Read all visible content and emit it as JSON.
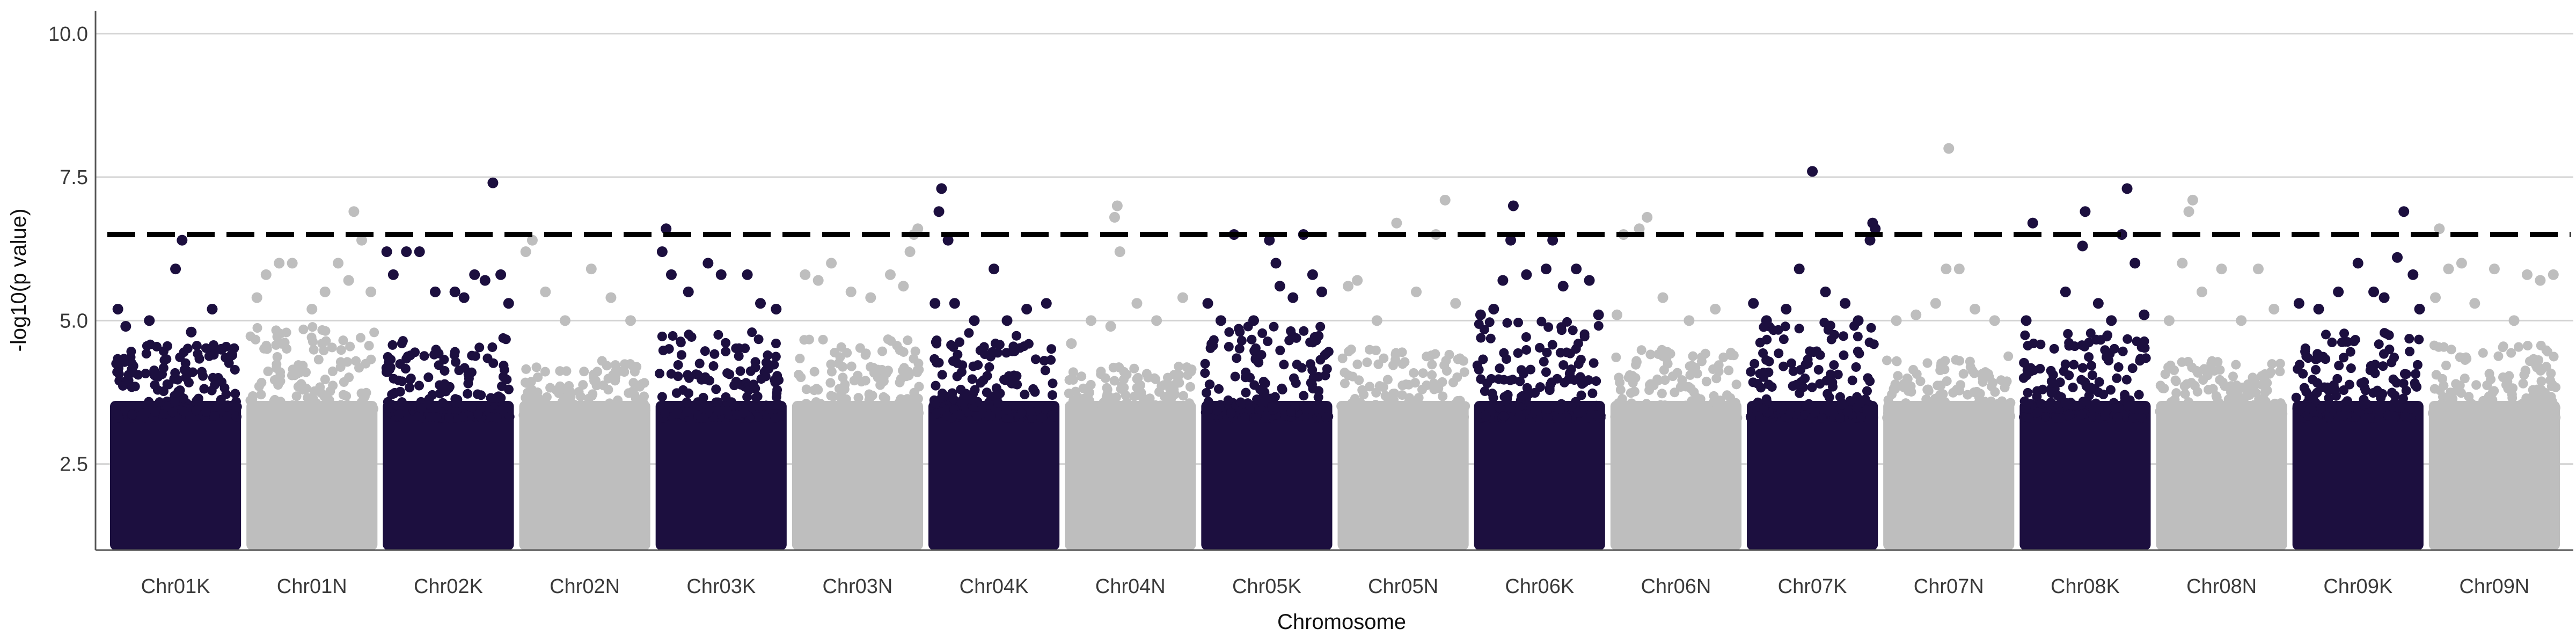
{
  "chart_data": {
    "type": "scatter",
    "subtype": "manhattan",
    "title": "",
    "xlabel": "Chromosome",
    "ylabel": "-log10(p value)",
    "ylim": [
      1.0,
      10.4
    ],
    "y_ticks": [
      2.5,
      5.0,
      7.5,
      10.0
    ],
    "y_tick_labels": [
      "2.5",
      "5.0",
      "7.5",
      "10.0"
    ],
    "grid": "horizontal-major",
    "legend": "none",
    "threshold": {
      "value": 6.5,
      "style": "dashed",
      "color": "#000000"
    },
    "colors": {
      "odd": "#1c0f3f",
      "even": "#bebebe",
      "background": "#ffffff",
      "grid": "#d4d4d4"
    },
    "categories": [
      "Chr01K",
      "Chr01N",
      "Chr02K",
      "Chr02N",
      "Chr03K",
      "Chr03N",
      "Chr04K",
      "Chr04N",
      "Chr05K",
      "Chr05N",
      "Chr06K",
      "Chr06N",
      "Chr07K",
      "Chr07N",
      "Chr08K",
      "Chr08N",
      "Chr09K",
      "Chr09N"
    ],
    "bulk_top": [
      4.6,
      4.9,
      4.7,
      4.3,
      4.8,
      4.7,
      4.8,
      4.2,
      4.9,
      4.5,
      5.0,
      4.5,
      5.0,
      4.4,
      4.8,
      4.3,
      4.8,
      4.6
    ],
    "series": [
      {
        "name": "",
        "category": "Chr01K",
        "points": [
          [
            0.06,
            5.2
          ],
          [
            0.12,
            4.9
          ],
          [
            0.3,
            5.0
          ],
          [
            0.5,
            5.9
          ],
          [
            0.55,
            6.4
          ],
          [
            0.62,
            4.8
          ],
          [
            0.78,
            5.2
          ],
          [
            0.85,
            4.5
          ],
          [
            0.93,
            4.4
          ]
        ]
      },
      {
        "name": "",
        "category": "Chr01N",
        "points": [
          [
            0.08,
            5.4
          ],
          [
            0.15,
            5.8
          ],
          [
            0.25,
            6.0
          ],
          [
            0.35,
            6.0
          ],
          [
            0.5,
            5.2
          ],
          [
            0.6,
            5.5
          ],
          [
            0.7,
            6.0
          ],
          [
            0.78,
            5.7
          ],
          [
            0.82,
            6.9
          ],
          [
            0.88,
            6.4
          ],
          [
            0.95,
            5.5
          ]
        ]
      },
      {
        "name": "",
        "category": "Chr02K",
        "points": [
          [
            0.03,
            6.2
          ],
          [
            0.08,
            5.8
          ],
          [
            0.18,
            6.2
          ],
          [
            0.28,
            6.2
          ],
          [
            0.4,
            5.5
          ],
          [
            0.55,
            5.5
          ],
          [
            0.62,
            5.4
          ],
          [
            0.7,
            5.8
          ],
          [
            0.78,
            5.7
          ],
          [
            0.84,
            7.4
          ],
          [
            0.9,
            5.8
          ],
          [
            0.96,
            5.3
          ]
        ]
      },
      {
        "name": "",
        "category": "Chr02N",
        "points": [
          [
            0.05,
            6.2
          ],
          [
            0.1,
            6.4
          ],
          [
            0.2,
            5.5
          ],
          [
            0.35,
            5.0
          ],
          [
            0.55,
            5.9
          ],
          [
            0.7,
            5.4
          ],
          [
            0.85,
            5.0
          ]
        ]
      },
      {
        "name": "",
        "category": "Chr03K",
        "points": [
          [
            0.05,
            6.2
          ],
          [
            0.08,
            6.6
          ],
          [
            0.12,
            5.8
          ],
          [
            0.25,
            5.5
          ],
          [
            0.4,
            6.0
          ],
          [
            0.5,
            5.8
          ],
          [
            0.7,
            5.8
          ],
          [
            0.8,
            5.3
          ],
          [
            0.92,
            5.2
          ]
        ]
      },
      {
        "name": "",
        "category": "Chr03N",
        "points": [
          [
            0.1,
            5.8
          ],
          [
            0.2,
            5.7
          ],
          [
            0.3,
            6.0
          ],
          [
            0.45,
            5.5
          ],
          [
            0.6,
            5.4
          ],
          [
            0.75,
            5.8
          ],
          [
            0.85,
            5.6
          ],
          [
            0.9,
            6.2
          ],
          [
            0.93,
            6.5
          ],
          [
            0.96,
            6.6
          ]
        ]
      },
      {
        "name": "",
        "category": "Chr04K",
        "points": [
          [
            0.05,
            5.3
          ],
          [
            0.08,
            6.9
          ],
          [
            0.1,
            7.3
          ],
          [
            0.15,
            6.4
          ],
          [
            0.2,
            5.3
          ],
          [
            0.35,
            5.0
          ],
          [
            0.5,
            5.9
          ],
          [
            0.6,
            5.0
          ],
          [
            0.75,
            5.2
          ],
          [
            0.9,
            5.3
          ]
        ]
      },
      {
        "name": "",
        "category": "Chr04N",
        "points": [
          [
            0.05,
            4.6
          ],
          [
            0.2,
            5.0
          ],
          [
            0.35,
            4.9
          ],
          [
            0.38,
            6.8
          ],
          [
            0.4,
            7.0
          ],
          [
            0.42,
            6.2
          ],
          [
            0.55,
            5.3
          ],
          [
            0.7,
            5.0
          ],
          [
            0.9,
            5.4
          ]
        ]
      },
      {
        "name": "",
        "category": "Chr05K",
        "points": [
          [
            0.05,
            5.3
          ],
          [
            0.15,
            5.0
          ],
          [
            0.25,
            6.5
          ],
          [
            0.4,
            5.0
          ],
          [
            0.52,
            6.4
          ],
          [
            0.57,
            6.0
          ],
          [
            0.6,
            5.6
          ],
          [
            0.7,
            5.4
          ],
          [
            0.78,
            6.5
          ],
          [
            0.85,
            5.8
          ],
          [
            0.92,
            5.5
          ]
        ]
      },
      {
        "name": "",
        "category": "Chr05N",
        "points": [
          [
            0.08,
            5.6
          ],
          [
            0.15,
            5.7
          ],
          [
            0.3,
            5.0
          ],
          [
            0.45,
            6.7
          ],
          [
            0.6,
            5.5
          ],
          [
            0.75,
            6.5
          ],
          [
            0.82,
            7.1
          ],
          [
            0.9,
            5.3
          ]
        ]
      },
      {
        "name": "",
        "category": "Chr06K",
        "points": [
          [
            0.05,
            5.1
          ],
          [
            0.15,
            5.2
          ],
          [
            0.22,
            5.7
          ],
          [
            0.28,
            6.4
          ],
          [
            0.3,
            7.0
          ],
          [
            0.4,
            5.8
          ],
          [
            0.55,
            5.9
          ],
          [
            0.6,
            6.4
          ],
          [
            0.68,
            5.6
          ],
          [
            0.78,
            5.9
          ],
          [
            0.88,
            5.7
          ],
          [
            0.95,
            5.1
          ]
        ]
      },
      {
        "name": "",
        "category": "Chr06N",
        "points": [
          [
            0.05,
            5.1
          ],
          [
            0.1,
            6.5
          ],
          [
            0.22,
            6.6
          ],
          [
            0.28,
            6.8
          ],
          [
            0.4,
            5.4
          ],
          [
            0.6,
            5.0
          ],
          [
            0.8,
            5.2
          ]
        ]
      },
      {
        "name": "",
        "category": "Chr07K",
        "points": [
          [
            0.05,
            5.3
          ],
          [
            0.15,
            5.0
          ],
          [
            0.3,
            5.2
          ],
          [
            0.4,
            5.9
          ],
          [
            0.5,
            7.6
          ],
          [
            0.6,
            5.5
          ],
          [
            0.75,
            5.3
          ],
          [
            0.85,
            5.0
          ],
          [
            0.94,
            6.4
          ],
          [
            0.96,
            6.7
          ],
          [
            0.98,
            6.6
          ]
        ]
      },
      {
        "name": "",
        "category": "Chr07N",
        "points": [
          [
            0.1,
            5.0
          ],
          [
            0.25,
            5.1
          ],
          [
            0.4,
            5.3
          ],
          [
            0.48,
            5.9
          ],
          [
            0.5,
            8.0
          ],
          [
            0.58,
            5.9
          ],
          [
            0.7,
            5.2
          ],
          [
            0.85,
            5.0
          ]
        ]
      },
      {
        "name": "",
        "category": "Chr08K",
        "points": [
          [
            0.05,
            5.0
          ],
          [
            0.1,
            6.7
          ],
          [
            0.35,
            5.5
          ],
          [
            0.48,
            6.3
          ],
          [
            0.5,
            6.9
          ],
          [
            0.6,
            5.3
          ],
          [
            0.7,
            5.0
          ],
          [
            0.78,
            6.5
          ],
          [
            0.82,
            7.3
          ],
          [
            0.88,
            6.0
          ],
          [
            0.95,
            5.1
          ]
        ]
      },
      {
        "name": "",
        "category": "Chr08N",
        "points": [
          [
            0.1,
            5.0
          ],
          [
            0.2,
            6.0
          ],
          [
            0.25,
            6.9
          ],
          [
            0.28,
            7.1
          ],
          [
            0.35,
            5.5
          ],
          [
            0.5,
            5.9
          ],
          [
            0.65,
            5.0
          ],
          [
            0.78,
            5.9
          ],
          [
            0.9,
            5.2
          ]
        ]
      },
      {
        "name": "",
        "category": "Chr09K",
        "points": [
          [
            0.05,
            5.3
          ],
          [
            0.2,
            5.2
          ],
          [
            0.35,
            5.5
          ],
          [
            0.5,
            6.0
          ],
          [
            0.62,
            5.5
          ],
          [
            0.7,
            5.4
          ],
          [
            0.8,
            6.1
          ],
          [
            0.85,
            6.9
          ],
          [
            0.92,
            5.8
          ],
          [
            0.97,
            5.2
          ]
        ]
      },
      {
        "name": "",
        "category": "Chr09N",
        "points": [
          [
            0.05,
            5.4
          ],
          [
            0.08,
            6.6
          ],
          [
            0.15,
            5.9
          ],
          [
            0.25,
            6.0
          ],
          [
            0.35,
            5.3
          ],
          [
            0.5,
            5.9
          ],
          [
            0.65,
            5.0
          ],
          [
            0.75,
            5.8
          ],
          [
            0.85,
            5.7
          ],
          [
            0.95,
            5.8
          ]
        ]
      }
    ]
  }
}
